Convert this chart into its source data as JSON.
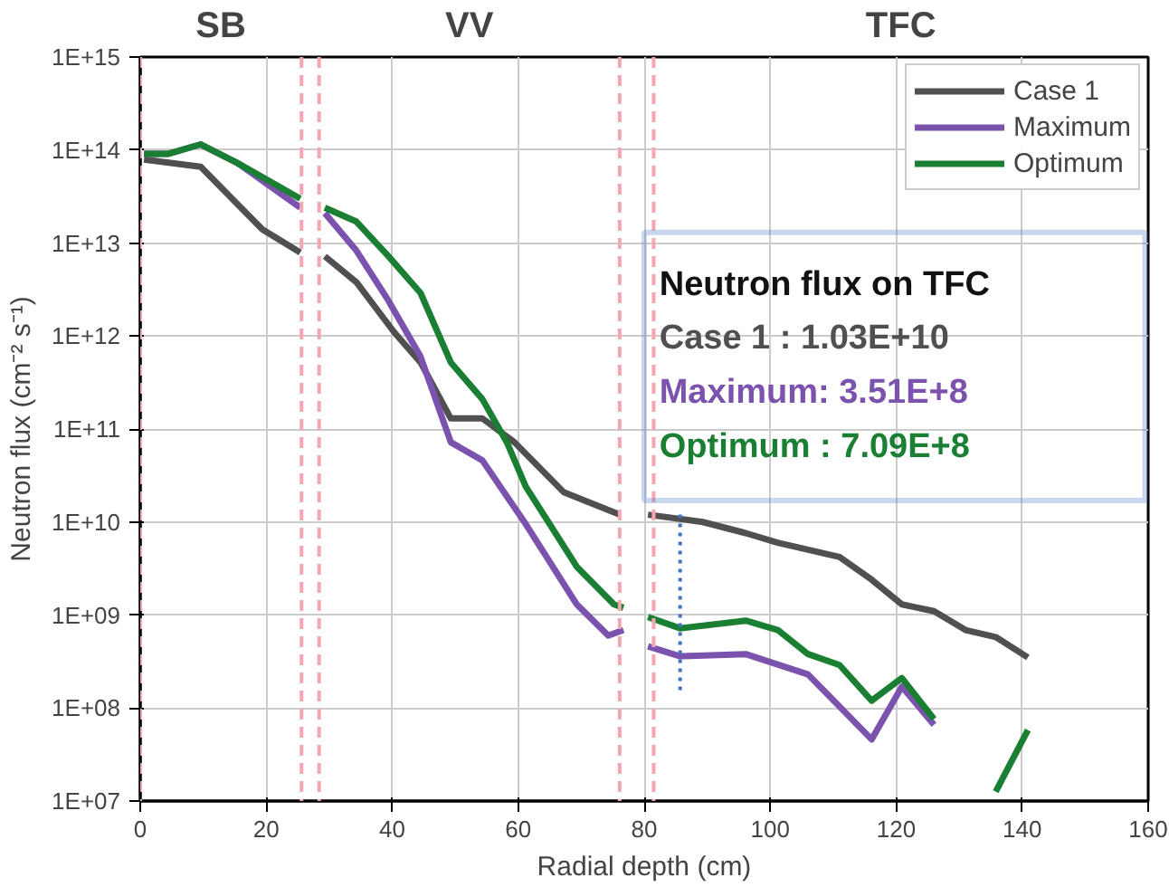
{
  "chart_data": {
    "type": "line",
    "xlabel": "Radial depth (cm)",
    "ylabel": "Neutron flux (cm⁻² s⁻¹)",
    "log": "y",
    "grid": true,
    "legend": "top right",
    "line_style": "solid",
    "marker": "none",
    "xlim": [
      0,
      160
    ],
    "xticks": [
      0,
      20,
      40,
      60,
      80,
      100,
      120,
      140,
      160
    ],
    "ylim": [
      10000000.0,
      1000000000000000.0
    ],
    "yticks": [
      {
        "value": 10000000.0,
        "label": "1E+07"
      },
      {
        "value": 100000000.0,
        "label": "1E+08"
      },
      {
        "value": 1000000000.0,
        "label": "1E+09"
      },
      {
        "value": 10000000000.0,
        "label": "1E+10"
      },
      {
        "value": 100000000000.0,
        "label": "1E+11"
      },
      {
        "value": 1000000000000.0,
        "label": "1E+12"
      },
      {
        "value": 10000000000000.0,
        "label": "1E+13"
      },
      {
        "value": 100000000000000.0,
        "label": "1E+14"
      },
      {
        "value": 1000000000000000.0,
        "label": "1E+15"
      }
    ],
    "series": [
      {
        "name": "Case 1",
        "color": "#505050",
        "x": [
          0.6,
          9.6,
          19.4,
          25.4,
          27,
          29.3,
          34.3,
          40.3,
          44.5,
          49.3,
          54.3,
          59.4,
          67.2,
          76.1,
          78.5,
          80.6,
          89.3,
          96.1,
          101.2,
          111,
          116.1,
          120.9,
          126,
          131,
          135.8,
          140.9
        ],
        "values": [
          79000000000000.0,
          66000000000000.0,
          14000000000000.0,
          7900000000000.0,
          null,
          7200000000000.0,
          3800000000000.0,
          1100000000000.0,
          520000000000.0,
          130000000000.0,
          130000000000.0,
          72000000000.0,
          21000000000.0,
          12000000000.0,
          null,
          12000000000.0,
          10000000000.0,
          7600000000.0,
          6000000000.0,
          4200000000.0,
          2400000000.0,
          1300000000.0,
          1100000000.0,
          690000000.0,
          580000000.0,
          350000000.0
        ]
      },
      {
        "name": "Maximum",
        "color": "#7b52ae",
        "x": [
          0.6,
          4.5,
          9.6,
          15.5,
          25.4,
          27,
          29.3,
          34.3,
          39.4,
          44.5,
          49.3,
          54.3,
          61.2,
          69.3,
          74.3,
          76.7,
          78.5,
          80.6,
          85.7,
          96.1,
          106,
          116.1,
          120.9,
          126
        ],
        "values": [
          91000000000000.0,
          91000000000000.0,
          115000000000000.0,
          72000000000000.0,
          24000000000000.0,
          null,
          21000000000000.0,
          8300000000000.0,
          2400000000000.0,
          600000000000.0,
          72000000000.0,
          46000000000.0,
          9500000000.0,
          1300000000.0,
          600000000.0,
          690000000.0,
          null,
          460000000.0,
          360000000.0,
          380000000.0,
          230000000.0,
          46000000.0,
          170000000.0,
          66000000.0
        ]
      },
      {
        "name": "Optimum",
        "color": "#1a7f32",
        "x": [
          0.6,
          4.5,
          9.6,
          15.5,
          25.4,
          27,
          29.3,
          34.3,
          39.4,
          44.5,
          49.3,
          54.3,
          58.2,
          61.2,
          69.3,
          75.2,
          76.7,
          78.5,
          80.6,
          85.7,
          96.1,
          101.2,
          106,
          111,
          116.1,
          120.9,
          126,
          131,
          135.8,
          140.9
        ],
        "values": [
          91000000000000.0,
          91000000000000.0,
          115000000000000.0,
          72000000000000.0,
          30000000000000.0,
          null,
          24000000000000.0,
          17000000000000.0,
          7200000000000.0,
          2900000000000.0,
          520000000000.0,
          210000000000.0,
          72000000000.0,
          24000000000.0,
          3300000000.0,
          1300000000.0,
          1200000000.0,
          null,
          950000000.0,
          720000000.0,
          870000000.0,
          690000000.0,
          380000000.0,
          290000000.0,
          120000000.0,
          210000000.0,
          76000000.0,
          null,
          12600000.0,
          58000000.0
        ]
      },
      {
        "color": "#4472c4",
        "line_style": "dotted",
        "x": [
          85.7,
          85.7
        ],
        "values": [
          12000000000.0,
          145000000.0
        ]
      }
    ],
    "ref_lines": [
      {
        "axis": "x",
        "value": 0,
        "color": "#f4a7b0",
        "line_style": "dashed"
      },
      {
        "axis": "x",
        "value": 25.6,
        "color": "#f4a7b0",
        "line_style": "dashed"
      },
      {
        "axis": "x",
        "value": 28.4,
        "color": "#f4a7b0",
        "line_style": "dashed"
      },
      {
        "axis": "x",
        "value": 76.1,
        "color": "#f4a7b0",
        "line_style": "dashed"
      },
      {
        "axis": "x",
        "value": 81.5,
        "color": "#f4a7b0",
        "line_style": "dashed"
      }
    ],
    "annotations": [
      "SB",
      "VV",
      "TFC",
      "Neutron flux on TFC",
      "Case 1     : 1.03E+10",
      "Maximum: 3.51E+8",
      "Optimum : 7.09E+8"
    ]
  }
}
